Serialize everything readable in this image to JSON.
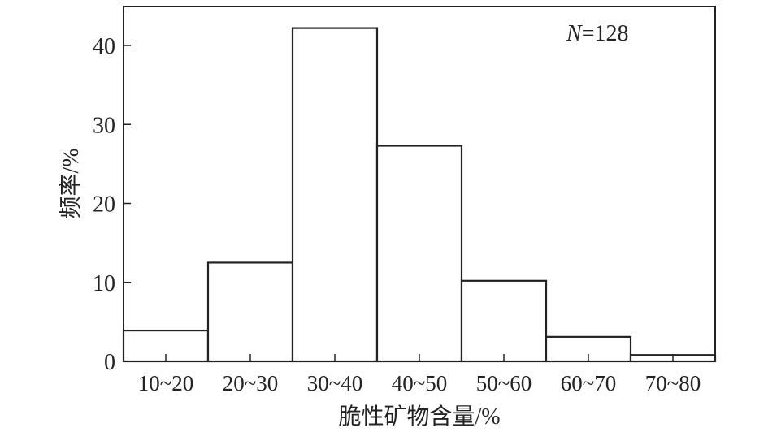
{
  "chart_data": {
    "type": "bar",
    "histogram": true,
    "categories": [
      "10~20",
      "20~30",
      "30~40",
      "40~50",
      "50~60",
      "60~70",
      "70~80"
    ],
    "values": [
      3.9,
      12.5,
      42.2,
      27.3,
      10.2,
      3.1,
      0.8
    ],
    "xlabel": "脆性矿物含量/%",
    "ylabel": "频率/%",
    "ylim": [
      0,
      40
    ],
    "ymax": 40,
    "yticks": [
      0,
      10,
      20,
      30,
      40
    ],
    "annotation": {
      "n_label": "N",
      "n_value": "=128"
    },
    "grid": false,
    "legend": "none",
    "colors": {
      "bar_fill": "#ffffff",
      "bar_stroke": "#222222",
      "axis": "#222222"
    }
  }
}
